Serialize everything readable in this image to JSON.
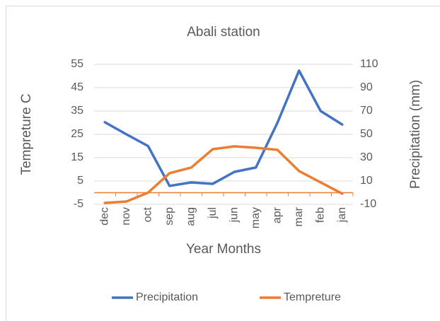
{
  "chart_data": {
    "type": "line",
    "title": "Abali station",
    "x_label": "Year Months",
    "y_label": "Tempreture C",
    "y2_label": "Precipitation (mm)",
    "categories": [
      "dec",
      "nov",
      "oct",
      "sep",
      "aug",
      "jul",
      "jun",
      "may",
      "apr",
      "mar",
      "feb",
      "jan"
    ],
    "series": [
      {
        "name": "Precipitation",
        "color": "#4472c4",
        "values": [
          30.2,
          25,
          20,
          2.9,
          4.4,
          3.8,
          8.9,
          10.8,
          30,
          52.3,
          35,
          29.2
        ]
      },
      {
        "name": "Tempreture",
        "color": "#ed7d31",
        "axis": "y2",
        "values": [
          -8.8,
          -7.6,
          0,
          16.7,
          21.5,
          37.3,
          39.7,
          38.5,
          36.7,
          18.5,
          8.8,
          -0.9
        ]
      }
    ],
    "ylim": [
      -5,
      55
    ],
    "yticks": [
      -5,
      5,
      15,
      25,
      35,
      45,
      55
    ],
    "y2lim": [
      -10,
      110
    ],
    "y2ticks": [
      -10,
      10,
      30,
      50,
      70,
      90,
      110
    ],
    "grid": true,
    "legend": "bottom"
  }
}
